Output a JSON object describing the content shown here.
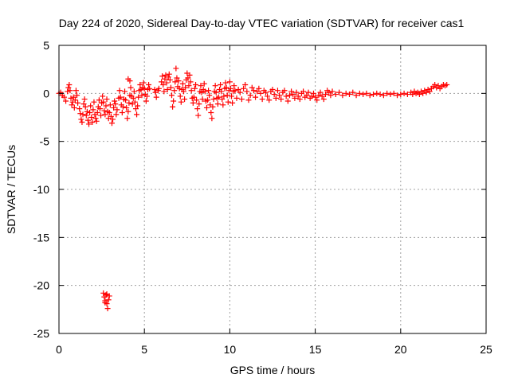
{
  "chart_data": {
    "type": "scatter",
    "title": "Day 224 of 2020, Sidereal Day-to-day VTEC variation (SDTVAR) for receiver cas1",
    "xlabel": "GPS time / hours",
    "ylabel": "SDTVAR / TECUs",
    "xlim": [
      0,
      25
    ],
    "ylim": [
      -25,
      5
    ],
    "grid": true,
    "marker": "plus",
    "color": "#ff0000",
    "x_ticks": [
      0,
      5,
      10,
      15,
      20,
      25
    ],
    "y_ticks": [
      5,
      0,
      -5,
      -10,
      -15,
      -20,
      -25
    ],
    "x_tick_labels": [
      "0",
      "5",
      "10",
      "15",
      "20",
      "25"
    ],
    "y_tick_labels": [
      "5",
      "0",
      "-5",
      "-10",
      "-15",
      "-20",
      "-25"
    ],
    "series": [
      {
        "name": "cas1",
        "points": [
          [
            0.0,
            0.0
          ],
          [
            0.1,
            0.1
          ],
          [
            0.2,
            -0.2
          ],
          [
            0.3,
            -0.4
          ],
          [
            0.4,
            -0.8
          ],
          [
            0.5,
            0.2
          ],
          [
            0.55,
            0.6
          ],
          [
            0.6,
            0.9
          ],
          [
            0.65,
            0.3
          ],
          [
            0.7,
            -0.5
          ],
          [
            0.75,
            -1.2
          ],
          [
            0.8,
            -0.9
          ],
          [
            0.85,
            -0.4
          ],
          [
            0.9,
            -1.5
          ],
          [
            0.95,
            -0.7
          ],
          [
            1.0,
            0.3
          ],
          [
            1.05,
            -0.2
          ],
          [
            1.1,
            -1.0
          ],
          [
            1.2,
            -1.6
          ],
          [
            1.25,
            -2.1
          ],
          [
            1.3,
            -2.7
          ],
          [
            1.35,
            -3.0
          ],
          [
            1.4,
            -2.2
          ],
          [
            1.45,
            -1.1
          ],
          [
            1.5,
            -0.6
          ],
          [
            1.55,
            -1.4
          ],
          [
            1.6,
            -2.3
          ],
          [
            1.65,
            -1.9
          ],
          [
            1.7,
            -2.8
          ],
          [
            1.75,
            -3.2
          ],
          [
            1.8,
            -2.0
          ],
          [
            1.85,
            -1.3
          ],
          [
            1.9,
            -2.5
          ],
          [
            1.95,
            -3.0
          ],
          [
            2.0,
            -1.7
          ],
          [
            2.05,
            -0.9
          ],
          [
            2.1,
            -2.2
          ],
          [
            2.15,
            -2.6
          ],
          [
            2.2,
            -2.9
          ],
          [
            2.25,
            -2.0
          ],
          [
            2.3,
            -1.4
          ],
          [
            2.35,
            -0.7
          ],
          [
            2.4,
            -1.6
          ],
          [
            2.45,
            -2.3
          ],
          [
            2.5,
            -1.0
          ],
          [
            2.55,
            -0.3
          ],
          [
            2.6,
            -0.9
          ],
          [
            2.65,
            -1.8
          ],
          [
            2.7,
            -2.2
          ],
          [
            2.75,
            -1.3
          ],
          [
            2.8,
            -0.6
          ],
          [
            2.85,
            -1.9
          ],
          [
            2.9,
            -2.6
          ],
          [
            2.95,
            -2.0
          ],
          [
            3.0,
            -1.2
          ],
          [
            3.05,
            -2.4
          ],
          [
            3.1,
            -3.1
          ],
          [
            3.15,
            -2.7
          ],
          [
            3.2,
            -1.5
          ],
          [
            3.25,
            -0.8
          ],
          [
            3.3,
            -1.1
          ],
          [
            3.35,
            -2.2
          ],
          [
            3.4,
            -1.7
          ],
          [
            3.5,
            -0.5
          ],
          [
            3.55,
            0.3
          ],
          [
            3.6,
            -0.4
          ],
          [
            3.65,
            -1.2
          ],
          [
            3.7,
            -2.0
          ],
          [
            3.75,
            -1.4
          ],
          [
            3.8,
            -0.6
          ],
          [
            3.85,
            0.2
          ],
          [
            3.9,
            -0.7
          ],
          [
            3.95,
            -1.5
          ],
          [
            4.0,
            -2.6
          ],
          [
            4.05,
            -1.9
          ],
          [
            4.1,
            -1.0
          ],
          [
            4.15,
            -0.2
          ],
          [
            4.2,
            0.6
          ],
          [
            4.25,
            -0.3
          ],
          [
            4.3,
            -1.1
          ],
          [
            4.35,
            -0.5
          ],
          [
            4.4,
            0.2
          ],
          [
            4.45,
            -0.9
          ],
          [
            4.5,
            -1.6
          ],
          [
            4.55,
            -2.2
          ],
          [
            4.6,
            -1.3
          ],
          [
            4.65,
            -0.4
          ],
          [
            4.7,
            0.3
          ],
          [
            4.75,
            0.9
          ],
          [
            4.8,
            0.4
          ],
          [
            4.85,
            -0.2
          ],
          [
            4.9,
            0.6
          ],
          [
            4.95,
            1.1
          ],
          [
            5.0,
            0.5
          ],
          [
            5.05,
            -0.1
          ],
          [
            5.1,
            -0.8
          ],
          [
            5.15,
            -0.3
          ],
          [
            5.2,
            0.4
          ],
          [
            5.25,
            0.9
          ],
          [
            5.3,
            0.5
          ],
          [
            4.05,
            1.5
          ],
          [
            4.15,
            1.3
          ],
          [
            5.6,
            0.4
          ],
          [
            5.65,
            0.1
          ],
          [
            5.7,
            -0.4
          ],
          [
            5.8,
            0.3
          ],
          [
            5.85,
            0.5
          ],
          [
            6.0,
            1.2
          ],
          [
            6.05,
            1.8
          ],
          [
            6.1,
            0.9
          ],
          [
            6.15,
            0.2
          ],
          [
            6.2,
            1.5
          ],
          [
            6.25,
            1.9
          ],
          [
            6.3,
            1.1
          ],
          [
            6.35,
            0.4
          ],
          [
            6.4,
            1.7
          ],
          [
            6.45,
            2.0
          ],
          [
            6.5,
            1.4
          ],
          [
            6.55,
            0.6
          ],
          [
            6.6,
            -0.2
          ],
          [
            6.65,
            -1.4
          ],
          [
            6.7,
            -0.8
          ],
          [
            6.75,
            0.3
          ],
          [
            6.8,
            1.2
          ],
          [
            6.85,
            2.6
          ],
          [
            6.9,
            1.6
          ],
          [
            6.95,
            0.7
          ],
          [
            7.0,
            1.3
          ],
          [
            7.05,
            0.5
          ],
          [
            7.1,
            -0.3
          ],
          [
            7.15,
            -0.9
          ],
          [
            7.2,
            0.4
          ],
          [
            7.25,
            1.0
          ],
          [
            7.3,
            0.2
          ],
          [
            7.35,
            -0.6
          ],
          [
            7.4,
            0.6
          ],
          [
            7.45,
            1.4
          ],
          [
            7.5,
            2.1
          ],
          [
            7.55,
            1.6
          ],
          [
            7.6,
            0.8
          ],
          [
            7.65,
            1.9
          ],
          [
            7.7,
            1.2
          ],
          [
            7.75,
            0.3
          ],
          [
            7.8,
            -0.5
          ],
          [
            7.85,
            -1.0
          ],
          [
            7.9,
            -0.4
          ],
          [
            7.95,
            0.5
          ],
          [
            8.0,
            0.9
          ],
          [
            8.05,
            -0.7
          ],
          [
            8.1,
            -1.6
          ],
          [
            8.15,
            -2.3
          ],
          [
            8.2,
            -1.1
          ],
          [
            8.25,
            0.2
          ],
          [
            8.3,
            0.8
          ],
          [
            8.35,
            0.1
          ],
          [
            8.4,
            -0.6
          ],
          [
            8.45,
            0.4
          ],
          [
            8.5,
            1.0
          ],
          [
            8.55,
            0.2
          ],
          [
            8.6,
            -0.8
          ],
          [
            8.65,
            -1.5
          ],
          [
            8.7,
            -0.7
          ],
          [
            8.75,
            0.3
          ],
          [
            8.8,
            -0.2
          ],
          [
            8.85,
            -1.2
          ],
          [
            8.9,
            -2.0
          ],
          [
            8.95,
            -2.6
          ],
          [
            9.0,
            -1.4
          ],
          [
            9.05,
            -0.6
          ],
          [
            9.1,
            0.2
          ],
          [
            9.15,
            0.8
          ],
          [
            9.2,
            0.1
          ],
          [
            9.25,
            -0.5
          ],
          [
            9.3,
            -1.1
          ],
          [
            9.35,
            -0.4
          ],
          [
            9.4,
            0.4
          ],
          [
            9.45,
            0.9
          ],
          [
            9.5,
            0.2
          ],
          [
            9.55,
            -0.6
          ],
          [
            9.6,
            -1.2
          ],
          [
            9.65,
            -0.3
          ],
          [
            9.7,
            0.5
          ],
          [
            9.75,
            1.1
          ],
          [
            9.8,
            0.6
          ],
          [
            9.85,
            -0.2
          ],
          [
            9.9,
            -0.9
          ],
          [
            9.95,
            0.3
          ],
          [
            10.0,
            1.2
          ],
          [
            10.05,
            0.5
          ],
          [
            10.1,
            -0.3
          ],
          [
            10.15,
            -1.0
          ],
          [
            10.2,
            0.2
          ],
          [
            10.25,
            0.8
          ],
          [
            10.3,
            0.3
          ],
          [
            10.4,
            -0.5
          ],
          [
            10.5,
            0.4
          ],
          [
            10.6,
            0.1
          ],
          [
            10.7,
            -0.6
          ],
          [
            10.8,
            0.5
          ],
          [
            10.9,
            0.9
          ],
          [
            11.0,
            0.2
          ],
          [
            11.1,
            -0.7
          ],
          [
            11.2,
            -0.2
          ],
          [
            11.3,
            0.6
          ],
          [
            11.4,
            0.3
          ],
          [
            11.5,
            -0.4
          ],
          [
            11.6,
            0.2
          ],
          [
            11.7,
            0.5
          ],
          [
            11.8,
            0.0
          ],
          [
            11.9,
            -0.6
          ],
          [
            12.0,
            0.3
          ],
          [
            12.1,
            0.1
          ],
          [
            12.2,
            -0.3
          ],
          [
            12.3,
            -0.7
          ],
          [
            12.4,
            0.2
          ],
          [
            12.5,
            0.4
          ],
          [
            12.6,
            -0.1
          ],
          [
            12.7,
            -0.5
          ],
          [
            12.8,
            0.3
          ],
          [
            12.9,
            -0.2
          ],
          [
            13.0,
            -0.6
          ],
          [
            13.1,
            0.1
          ],
          [
            13.2,
            0.3
          ],
          [
            13.3,
            -0.3
          ],
          [
            13.4,
            -0.8
          ],
          [
            13.5,
            -0.2
          ],
          [
            13.6,
            0.2
          ],
          [
            13.7,
            -0.1
          ],
          [
            13.8,
            -0.5
          ],
          [
            13.9,
            0.1
          ],
          [
            14.0,
            -0.3
          ],
          [
            14.1,
            -0.6
          ],
          [
            14.2,
            0.0
          ],
          [
            14.3,
            0.2
          ],
          [
            14.4,
            -0.4
          ],
          [
            14.5,
            -0.2
          ],
          [
            14.6,
            0.1
          ],
          [
            14.7,
            -0.5
          ],
          [
            14.8,
            -0.3
          ],
          [
            14.9,
            0.0
          ],
          [
            15.0,
            -0.4
          ],
          [
            15.1,
            -0.7
          ],
          [
            15.2,
            -0.2
          ],
          [
            15.3,
            0.1
          ],
          [
            15.4,
            -0.3
          ],
          [
            15.5,
            -0.6
          ],
          [
            15.6,
            -0.1
          ],
          [
            15.7,
            0.3
          ],
          [
            15.8,
            0.1
          ],
          [
            15.9,
            -0.2
          ],
          [
            16.0,
            0.2
          ],
          [
            16.2,
            -0.1
          ],
          [
            16.4,
            0.1
          ],
          [
            16.6,
            -0.2
          ],
          [
            16.8,
            0.0
          ],
          [
            17.0,
            -0.1
          ],
          [
            17.2,
            0.1
          ],
          [
            17.4,
            -0.2
          ],
          [
            17.6,
            0.0
          ],
          [
            17.8,
            -0.1
          ],
          [
            18.0,
            0.0
          ],
          [
            18.2,
            -0.2
          ],
          [
            18.4,
            -0.1
          ],
          [
            18.6,
            0.0
          ],
          [
            18.8,
            -0.1
          ],
          [
            19.0,
            -0.2
          ],
          [
            19.2,
            0.0
          ],
          [
            19.4,
            -0.1
          ],
          [
            19.6,
            0.0
          ],
          [
            19.8,
            -0.2
          ],
          [
            20.0,
            -0.1
          ],
          [
            20.2,
            0.0
          ],
          [
            20.4,
            -0.1
          ],
          [
            20.6,
            0.1
          ],
          [
            20.7,
            -0.1
          ],
          [
            20.8,
            0.2
          ],
          [
            20.9,
            0.0
          ],
          [
            21.0,
            0.1
          ],
          [
            21.1,
            -0.1
          ],
          [
            21.2,
            0.2
          ],
          [
            21.3,
            0.0
          ],
          [
            21.4,
            0.3
          ],
          [
            21.5,
            0.1
          ],
          [
            21.6,
            0.4
          ],
          [
            21.7,
            0.2
          ],
          [
            21.8,
            0.5
          ],
          [
            21.9,
            0.7
          ],
          [
            22.0,
            0.9
          ],
          [
            22.1,
            0.6
          ],
          [
            22.2,
            0.8
          ],
          [
            22.3,
            0.5
          ],
          [
            22.4,
            0.7
          ],
          [
            22.5,
            0.9
          ],
          [
            22.6,
            0.8
          ],
          [
            22.7,
            0.9
          ],
          [
            2.6,
            -20.8
          ],
          [
            2.65,
            -21.2
          ],
          [
            2.7,
            -21.6
          ],
          [
            2.75,
            -21.0
          ],
          [
            2.8,
            -21.9
          ],
          [
            2.85,
            -22.4
          ],
          [
            2.9,
            -21.5
          ],
          [
            2.95,
            -21.1
          ],
          [
            2.8,
            -20.9
          ],
          [
            2.7,
            -21.8
          ]
        ]
      }
    ]
  }
}
